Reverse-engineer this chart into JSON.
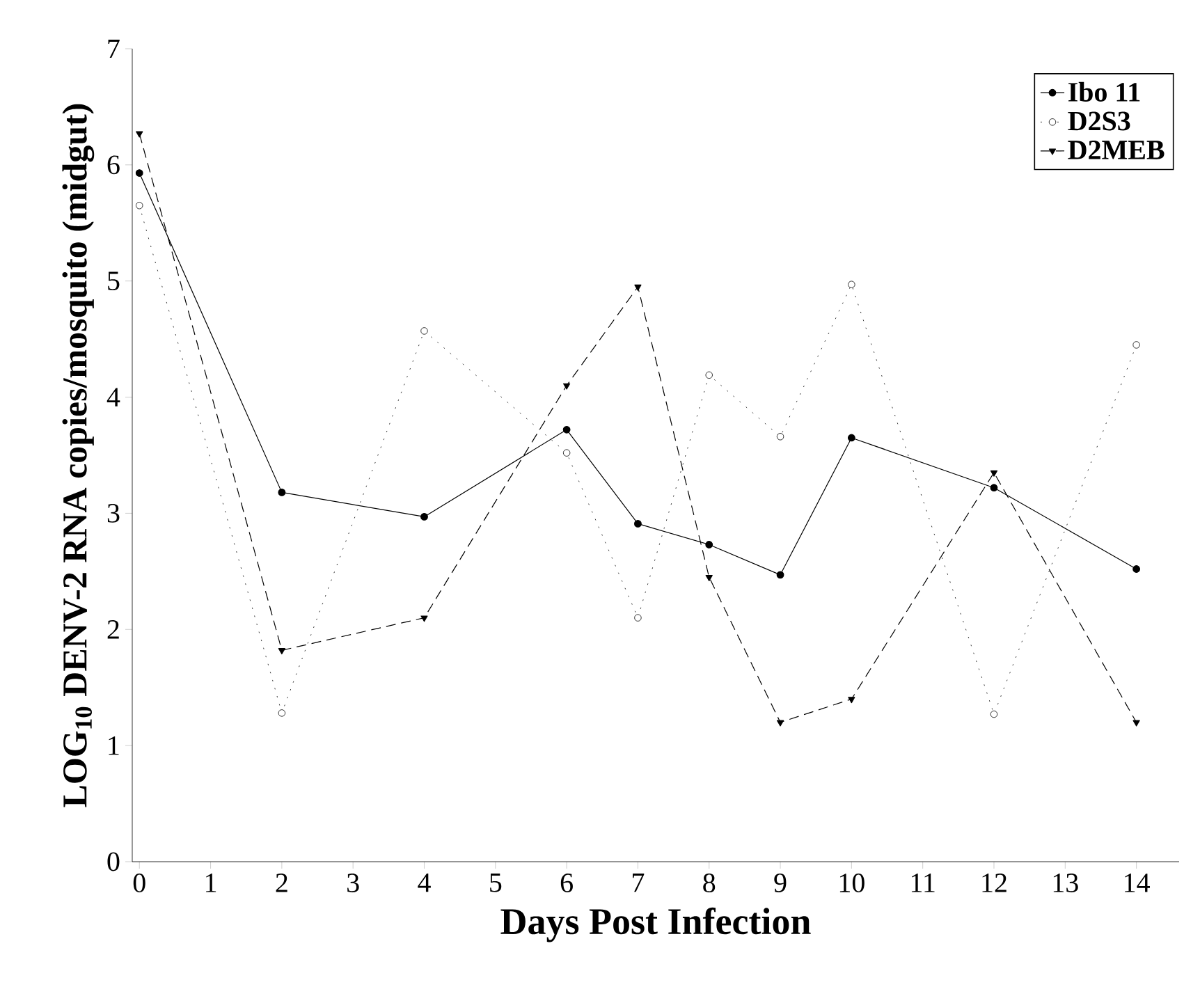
{
  "chart_data": {
    "type": "line",
    "xlabel": "Days Post Infection",
    "ylabel": "LOG$_{10}$ DENV-2 RNA copies/mosquito (midgut)",
    "x": [
      0,
      2,
      4,
      6,
      7,
      8,
      9,
      10,
      12,
      14
    ],
    "series": [
      {
        "name": "Ibo 11",
        "color": "#000000",
        "marker": "circle",
        "line_style": "solid",
        "values": [
          5.93,
          3.18,
          2.97,
          3.72,
          2.91,
          2.73,
          2.47,
          3.65,
          3.22,
          2.52
        ]
      },
      {
        "name": "D2S3",
        "color": "#000000",
        "marker": "circle",
        "line_style": "dotted",
        "values": [
          5.65,
          1.28,
          4.57,
          3.52,
          2.1,
          4.19,
          3.66,
          4.97,
          1.27,
          4.45
        ]
      },
      {
        "name": "D2MEB",
        "color": "#000000",
        "marker": "triangle",
        "line_style": "dashed",
        "values": [
          6.27,
          1.82,
          2.1,
          4.1,
          4.95,
          2.45,
          1.2,
          1.4,
          3.35,
          1.2
        ]
      }
    ],
    "xlim": [
      -0.1,
      14.6
    ],
    "ylim": [
      0,
      7
    ],
    "xticks": [
      0,
      1,
      2,
      3,
      4,
      5,
      6,
      7,
      8,
      9,
      10,
      11,
      12,
      13,
      14
    ],
    "yticks": [
      0,
      1,
      2,
      3,
      4,
      5,
      6,
      7
    ],
    "grid": false,
    "legend": "top right"
  }
}
